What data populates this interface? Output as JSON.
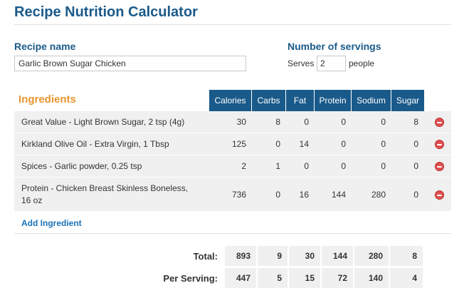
{
  "page_title": "Recipe Nutrition Calculator",
  "recipe": {
    "label": "Recipe name",
    "value": "Garlic Brown Sugar Chicken"
  },
  "servings": {
    "label": "Number of servings",
    "prefix": "Serves",
    "value": "2",
    "suffix": "people"
  },
  "ingredients_header": "Ingredients",
  "columns": [
    "Calories",
    "Carbs",
    "Fat",
    "Protein",
    "Sodium",
    "Sugar"
  ],
  "ingredients": [
    {
      "name": "Great Value - Light Brown Sugar, 2 tsp (4g)",
      "values": [
        "30",
        "8",
        "0",
        "0",
        "0",
        "8"
      ]
    },
    {
      "name": "Kirkland Olive Oil - Extra Virgin, 1 Tbsp",
      "values": [
        "125",
        "0",
        "14",
        "0",
        "0",
        "0"
      ]
    },
    {
      "name": "Spices - Garlic powder, 0.25 tsp",
      "values": [
        "2",
        "1",
        "0",
        "0",
        "0",
        "0"
      ]
    },
    {
      "name": "Protein - Chicken Breast Skinless Boneless, 16 oz",
      "values": [
        "736",
        "0",
        "16",
        "144",
        "280",
        "0"
      ]
    }
  ],
  "add_ingredient_label": "Add Ingredient",
  "totals": {
    "label": "Total:",
    "values": [
      "893",
      "9",
      "30",
      "144",
      "280",
      "8"
    ]
  },
  "per_serving": {
    "label": "Per Serving:",
    "values": [
      "447",
      "5",
      "15",
      "72",
      "140",
      "4"
    ]
  },
  "colors": {
    "header_blue": "#1a5a8a",
    "accent_orange": "#e8962e",
    "link_blue": "#1a73b8",
    "remove_red": "#e05050"
  }
}
